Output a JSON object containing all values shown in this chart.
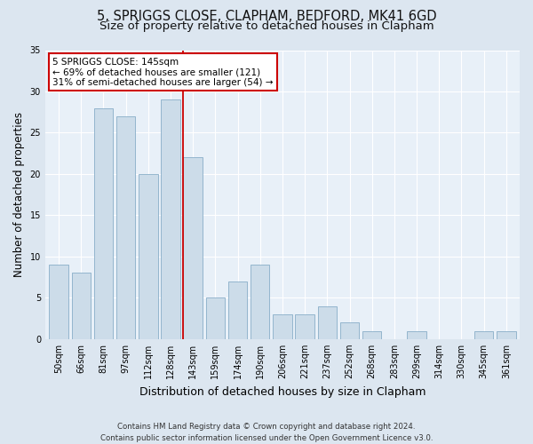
{
  "title_line1": "5, SPRIGGS CLOSE, CLAPHAM, BEDFORD, MK41 6GD",
  "title_line2": "Size of property relative to detached houses in Clapham",
  "xlabel": "Distribution of detached houses by size in Clapham",
  "ylabel": "Number of detached properties",
  "categories": [
    "50sqm",
    "66sqm",
    "81sqm",
    "97sqm",
    "112sqm",
    "128sqm",
    "143sqm",
    "159sqm",
    "174sqm",
    "190sqm",
    "206sqm",
    "221sqm",
    "237sqm",
    "252sqm",
    "268sqm",
    "283sqm",
    "299sqm",
    "314sqm",
    "330sqm",
    "345sqm",
    "361sqm"
  ],
  "values": [
    9,
    8,
    28,
    27,
    20,
    29,
    22,
    5,
    7,
    9,
    3,
    3,
    4,
    2,
    1,
    0,
    1,
    0,
    0,
    1,
    1
  ],
  "bar_color": "#ccdce9",
  "bar_edge_color": "#88aec8",
  "highlight_bar_index": 6,
  "annotation_line1": "5 SPRIGGS CLOSE: 145sqm",
  "annotation_line2": "← 69% of detached houses are smaller (121)",
  "annotation_line3": "31% of semi-detached houses are larger (54) →",
  "annotation_box_color": "#ffffff",
  "annotation_box_edge_color": "#cc0000",
  "vline_color": "#cc0000",
  "ylim": [
    0,
    35
  ],
  "yticks": [
    0,
    5,
    10,
    15,
    20,
    25,
    30,
    35
  ],
  "bg_color": "#dce6f0",
  "plot_bg_color": "#e8f0f8",
  "footer_text": "Contains HM Land Registry data © Crown copyright and database right 2024.\nContains public sector information licensed under the Open Government Licence v3.0.",
  "title1_fontsize": 10.5,
  "title2_fontsize": 9.5,
  "tick_fontsize": 7,
  "ylabel_fontsize": 8.5,
  "xlabel_fontsize": 9,
  "annotation_fontsize": 7.5,
  "footer_fontsize": 6.2
}
